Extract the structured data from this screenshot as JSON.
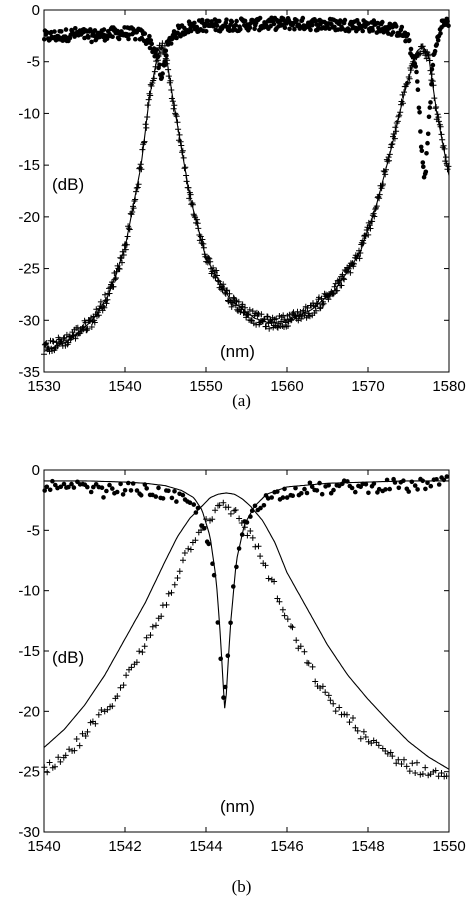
{
  "chart_data": [
    {
      "type": "scatter",
      "panel_label": "(a)",
      "xlabel": "(nm)",
      "ylabel": "(dB)",
      "xlim": [
        1530,
        1580
      ],
      "ylim": [
        -35,
        0
      ],
      "xticks": [
        1530,
        1540,
        1550,
        1560,
        1570,
        1580
      ],
      "yticks": [
        0,
        -5,
        -10,
        -15,
        -20,
        -25,
        -30,
        -35
      ],
      "grid": false,
      "series": [
        {
          "marker": "dot",
          "x": [
            1530,
            1532,
            1534,
            1536,
            1538,
            1540,
            1542,
            1543,
            1544,
            1544.5,
            1545,
            1546,
            1548,
            1550,
            1555,
            1560,
            1565,
            1570,
            1572,
            1574,
            1575,
            1576,
            1576.5,
            1577,
            1578,
            1579,
            1580
          ],
          "y": [
            -2.6,
            -2.5,
            -2.3,
            -2.5,
            -2.3,
            -2.2,
            -2.4,
            -3.0,
            -4.5,
            -7.0,
            -4.0,
            -2.3,
            -1.6,
            -1.5,
            -1.4,
            -1.3,
            -1.4,
            -1.5,
            -1.7,
            -2.0,
            -3.0,
            -6.0,
            -12.0,
            -17.0,
            -5.0,
            -1.5,
            -1.2
          ]
        },
        {
          "marker": "plus",
          "x": [
            1530,
            1533,
            1536,
            1538,
            1540,
            1542,
            1543,
            1544,
            1544.5,
            1545,
            1546,
            1548,
            1550,
            1553,
            1556,
            1558,
            1560,
            1563,
            1566,
            1569,
            1571,
            1573,
            1574.5,
            1576,
            1576.8,
            1577.5,
            1578.5,
            1580
          ],
          "y": [
            -32.8,
            -31.8,
            -30.0,
            -27.5,
            -23.0,
            -15.0,
            -8.5,
            -4.5,
            -3.5,
            -4.0,
            -9.0,
            -18.0,
            -24.0,
            -28.0,
            -29.8,
            -30.3,
            -30.0,
            -29.0,
            -27.0,
            -23.5,
            -19.0,
            -13.0,
            -8.0,
            -4.0,
            -3.5,
            -4.5,
            -10.0,
            -16.0
          ]
        }
      ],
      "fit_line": {
        "x": [
          1530,
          1533,
          1536,
          1538,
          1540,
          1542,
          1543,
          1544,
          1544.5,
          1545,
          1546,
          1548,
          1550,
          1553,
          1556,
          1558,
          1560,
          1563,
          1566,
          1569,
          1571,
          1573,
          1574.5,
          1576,
          1576.8,
          1577.5,
          1578.5,
          1580
        ],
        "y": [
          -33.0,
          -32.0,
          -30.0,
          -27.5,
          -23.0,
          -15.0,
          -8.5,
          -4.5,
          -3.5,
          -4.0,
          -9.0,
          -18.0,
          -24.0,
          -28.0,
          -29.8,
          -30.3,
          -30.0,
          -29.0,
          -27.0,
          -23.5,
          -19.0,
          -13.0,
          -8.0,
          -4.0,
          -3.5,
          -4.5,
          -10.0,
          -16.0
        ]
      }
    },
    {
      "type": "scatter",
      "panel_label": "(b)",
      "xlabel": "(nm)",
      "ylabel": "(dB)",
      "xlim": [
        1540,
        1550
      ],
      "ylim": [
        -30,
        0
      ],
      "xticks": [
        1540,
        1542,
        1544,
        1546,
        1548,
        1550
      ],
      "yticks": [
        0,
        -5,
        -10,
        -15,
        -20,
        -25,
        -30
      ],
      "grid": false,
      "series": [
        {
          "marker": "dot",
          "x": [
            1540,
            1540.5,
            1541,
            1541.5,
            1542,
            1542.5,
            1543,
            1543.5,
            1543.8,
            1544.0,
            1544.2,
            1544.35,
            1544.45,
            1544.55,
            1544.7,
            1544.9,
            1545.2,
            1545.6,
            1546,
            1546.5,
            1547,
            1547.5,
            1548,
            1548.5,
            1549,
            1549.5,
            1550
          ],
          "y": [
            -1.2,
            -1.6,
            -1.4,
            -1.8,
            -1.5,
            -1.7,
            -2.0,
            -2.6,
            -3.5,
            -5.0,
            -9.0,
            -15.0,
            -19.5,
            -15.0,
            -9.0,
            -5.0,
            -3.0,
            -2.2,
            -1.8,
            -1.5,
            -1.6,
            -1.3,
            -1.5,
            -1.2,
            -1.4,
            -1.1,
            -1.0
          ]
        },
        {
          "marker": "plus",
          "x": [
            1540,
            1540.5,
            1541,
            1541.5,
            1542,
            1542.5,
            1543,
            1543.5,
            1543.8,
            1544.2,
            1544.5,
            1544.8,
            1545.2,
            1545.6,
            1546,
            1546.5,
            1547,
            1547.5,
            1548,
            1548.5,
            1549,
            1549.5,
            1550
          ],
          "y": [
            -25.0,
            -24.0,
            -22.0,
            -20.0,
            -17.5,
            -14.5,
            -11.0,
            -7.0,
            -5.0,
            -3.5,
            -3.0,
            -3.8,
            -6.0,
            -9.0,
            -12.5,
            -16.0,
            -19.0,
            -20.5,
            -22.5,
            -23.5,
            -24.5,
            -25.0,
            -25.5
          ]
        }
      ],
      "fit_line_through": {
        "x": [
          1540,
          1540.5,
          1541,
          1541.5,
          1542,
          1542.5,
          1543,
          1543.3,
          1543.6,
          1543.9,
          1544.1,
          1544.3,
          1544.5,
          1544.7,
          1544.9,
          1545.1,
          1545.4,
          1545.7,
          1546,
          1546.5,
          1547,
          1547.5,
          1548,
          1548.5,
          1549,
          1549.5,
          1550
        ],
        "y": [
          -23.0,
          -21.5,
          -19.5,
          -17.0,
          -14.0,
          -11.0,
          -7.5,
          -5.5,
          -4.0,
          -3.0,
          -2.3,
          -2.0,
          -1.9,
          -2.0,
          -2.4,
          -3.0,
          -4.2,
          -6.0,
          -8.5,
          -11.5,
          -14.5,
          -17.0,
          -19.0,
          -20.8,
          -22.5,
          -23.8,
          -24.8
        ]
      },
      "fit_line_drop": {
        "x": [
          1540,
          1541,
          1542,
          1542.5,
          1543,
          1543.4,
          1543.7,
          1543.9,
          1544.1,
          1544.25,
          1544.35,
          1544.42,
          1544.47,
          1544.52,
          1544.6,
          1544.75,
          1544.95,
          1545.2,
          1545.5,
          1546,
          1547,
          1548,
          1549,
          1550
        ],
        "y": [
          -0.9,
          -0.9,
          -1.0,
          -1.1,
          -1.3,
          -1.7,
          -2.3,
          -3.3,
          -5.5,
          -9.0,
          -13.5,
          -17.5,
          -20.2,
          -17.5,
          -13.0,
          -7.5,
          -4.5,
          -3.0,
          -2.0,
          -1.4,
          -1.1,
          -1.0,
          -0.9,
          -0.9
        ]
      }
    }
  ]
}
